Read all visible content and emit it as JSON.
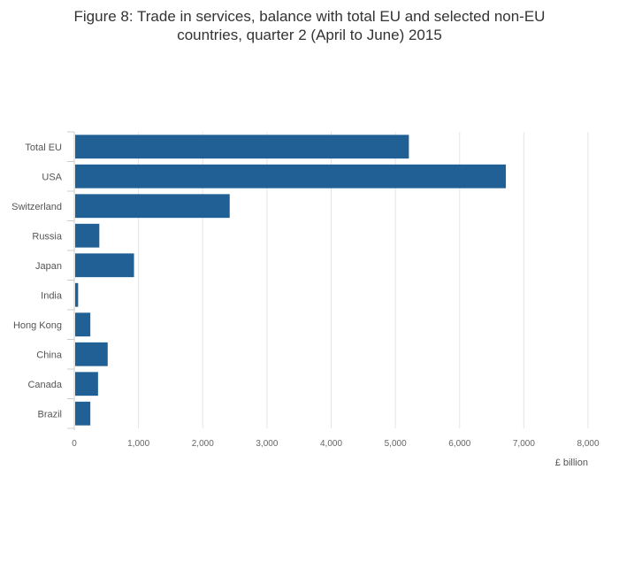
{
  "chart_data": {
    "type": "bar",
    "orientation": "horizontal",
    "title_line1": "Figure 8: Trade in services, balance with total EU and selected non-EU",
    "title_line2": "countries, quarter 2 (April to June) 2015",
    "xlabel": "£ billion",
    "ylabel": "",
    "xlim": [
      0,
      8000
    ],
    "x_ticks": [
      0,
      1000,
      2000,
      3000,
      4000,
      5000,
      6000,
      7000,
      8000
    ],
    "x_tick_labels": [
      "0",
      "1,000",
      "2,000",
      "3,000",
      "4,000",
      "5,000",
      "6,000",
      "7,000",
      "8,000"
    ],
    "grid": true,
    "legend": "none",
    "categories": [
      "Total EU",
      "USA",
      "Switzerland",
      "Russia",
      "Japan",
      "India",
      "Hong Kong",
      "China",
      "Canada",
      "Brazil"
    ],
    "values": [
      5210,
      6720,
      2420,
      390,
      930,
      60,
      250,
      520,
      370,
      250
    ],
    "colors": {
      "bar": "#206095",
      "grid": "#e5e5e5",
      "axis": "#cccccc"
    }
  }
}
